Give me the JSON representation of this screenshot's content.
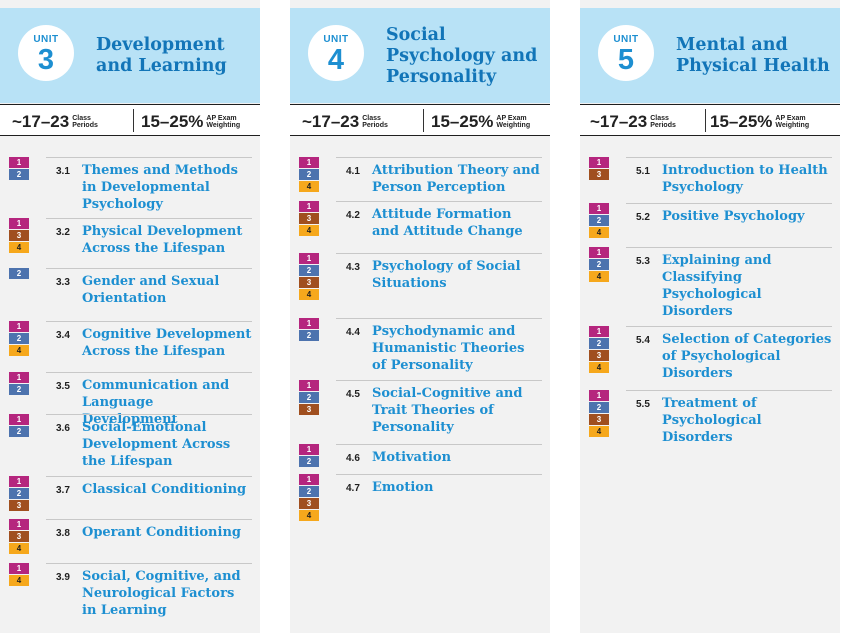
{
  "units": [
    {
      "word": "UNIT",
      "number": "3",
      "title": "Development and Learning",
      "periods": "~17–23",
      "periods_label": [
        "Class",
        "Periods"
      ],
      "weighting": "15–25%",
      "weighting_label": [
        "AP Exam",
        "Weighting"
      ],
      "topics": [
        {
          "num": "3.1",
          "title": "Themes and Methods in Developmental Psychology",
          "skills": [
            "1",
            "2"
          ]
        },
        {
          "num": "3.2",
          "title": "Physical Development Across the Lifespan",
          "skills": [
            "1",
            "3",
            "4"
          ]
        },
        {
          "num": "3.3",
          "title": "Gender and Sexual Orientation",
          "skills": [
            "2"
          ]
        },
        {
          "num": "3.4",
          "title": "Cognitive Development Across the Lifespan",
          "skills": [
            "1",
            "2",
            "4"
          ]
        },
        {
          "num": "3.5",
          "title": "Communication and Language Development",
          "skills": [
            "1",
            "2"
          ]
        },
        {
          "num": "3.6",
          "title": "Social-Emotional Development Across the Lifespan",
          "skills": [
            "1",
            "2"
          ]
        },
        {
          "num": "3.7",
          "title": "Classical Conditioning",
          "skills": [
            "1",
            "2",
            "3"
          ]
        },
        {
          "num": "3.8",
          "title": "Operant Conditioning",
          "skills": [
            "1",
            "3",
            "4"
          ]
        },
        {
          "num": "3.9",
          "title": "Social, Cognitive, and Neurological Factors in Learning",
          "skills": [
            "1",
            "4"
          ]
        }
      ]
    },
    {
      "word": "UNIT",
      "number": "4",
      "title": "Social Psychology and Personality",
      "periods": "~17–23",
      "periods_label": [
        "Class",
        "Periods"
      ],
      "weighting": "15–25%",
      "weighting_label": [
        "AP Exam",
        "Weighting"
      ],
      "topics": [
        {
          "num": "4.1",
          "title": "Attribution Theory and Person Perception",
          "skills": [
            "1",
            "2",
            "4"
          ]
        },
        {
          "num": "4.2",
          "title": "Attitude Formation and Attitude Change",
          "skills": [
            "1",
            "3",
            "4"
          ]
        },
        {
          "num": "4.3",
          "title": "Psychology of Social Situations",
          "skills": [
            "1",
            "2",
            "3",
            "4"
          ]
        },
        {
          "num": "4.4",
          "title": "Psychodynamic and Humanistic Theories of Personality",
          "skills": [
            "1",
            "2"
          ]
        },
        {
          "num": "4.5",
          "title": "Social-Cognitive and Trait Theories of Personality",
          "skills": [
            "1",
            "2",
            "3"
          ]
        },
        {
          "num": "4.6",
          "title": "Motivation",
          "skills": [
            "1",
            "2"
          ]
        },
        {
          "num": "4.7",
          "title": "Emotion",
          "skills": [
            "1",
            "2",
            "3",
            "4"
          ]
        }
      ]
    },
    {
      "word": "UNIT",
      "number": "5",
      "title": "Mental and Physical Health",
      "periods": "~17–23",
      "periods_label": [
        "Class",
        "Periods"
      ],
      "weighting": "15–25%",
      "weighting_label": [
        "AP Exam",
        "Weighting"
      ],
      "topics": [
        {
          "num": "5.1",
          "title": "Introduction to Health Psychology",
          "skills": [
            "1",
            "3"
          ]
        },
        {
          "num": "5.2",
          "title": "Positive Psychology",
          "skills": [
            "1",
            "2",
            "4"
          ]
        },
        {
          "num": "5.3",
          "title": "Explaining and Classifying Psychological Disorders",
          "skills": [
            "1",
            "2",
            "4"
          ]
        },
        {
          "num": "5.4",
          "title": "Selection of Categories of Psychological Disorders",
          "skills": [
            "1",
            "2",
            "3",
            "4"
          ]
        },
        {
          "num": "5.5",
          "title": "Treatment of Psychological Disorders",
          "skills": [
            "1",
            "2",
            "3",
            "4"
          ]
        }
      ]
    }
  ],
  "skill_colors": {
    "1": "#b5267e",
    "2": "#4d73ae",
    "3": "#a04f1f",
    "4": "#f6a81c"
  }
}
